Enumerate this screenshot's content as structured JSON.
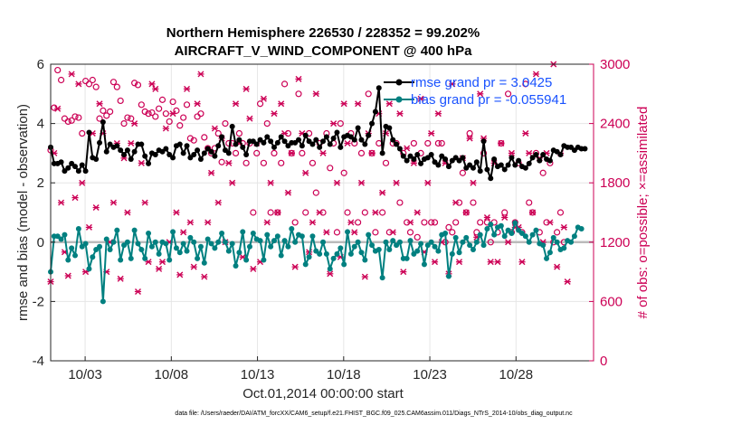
{
  "chart_data": {
    "type": "line",
    "title": "Northern Hemisphere 226530 / 228352 = 99.202%",
    "subtitle": "AIRCRAFT_V_WIND_COMPONENT @ 400 hPa",
    "xlabel": "Oct.01,2014 00:00:00 start",
    "ylabel": "rmse and bias (model - observation)",
    "y2label": "# of obs: o=possible; ×=assimilated",
    "footer": "data file: /Users/raeder/DAI/ATM_forcXX/CAM6_setup/f.e21.FHIST_BGC.f09_025.CAM6assim.011/Diags_NTrS_2014-10/obs_diag_output.nc",
    "xlim": [
      1,
      32.5
    ],
    "ylim": [
      -4,
      6
    ],
    "y2lim": [
      0,
      3000
    ],
    "x_ticks": [
      3,
      8,
      13,
      18,
      23,
      28
    ],
    "x_tick_labels": [
      "10/03",
      "10/08",
      "10/13",
      "10/18",
      "10/23",
      "10/28"
    ],
    "y_ticks": [
      -4,
      -2,
      0,
      2,
      4,
      6
    ],
    "y_tick_labels": [
      "-4",
      "-2",
      "0",
      "2",
      "4",
      "6"
    ],
    "y2_ticks": [
      0,
      600,
      1200,
      1800,
      2400,
      3000
    ],
    "y2_tick_labels": [
      "0",
      "600",
      "1200",
      "1800",
      "2400",
      "3000"
    ],
    "legend": [
      "rmse grand pr = 3.0425",
      "bias grand pr = -0.055941"
    ],
    "legend_position": "top-right",
    "colors": {
      "rmse": "#000000",
      "bias": "#008080",
      "obs": "#cc0055",
      "zero": "#bbbbbb",
      "legend_text": "#1a53ff"
    },
    "series": [
      {
        "name": "rmse",
        "values": [
          3.2,
          2.65,
          2.65,
          2.7,
          2.4,
          2.5,
          2.65,
          2.55,
          2.4,
          2.6,
          2.4,
          3.7,
          2.85,
          2.8,
          3.35,
          4.05,
          3.05,
          3.3,
          3.2,
          3.25,
          3.1,
          2.95,
          3.1,
          2.8,
          3.05,
          3.3,
          3.3,
          2.9,
          2.65,
          3.0,
          2.95,
          3.1,
          3.05,
          3.15,
          2.95,
          2.85,
          3.25,
          3.3,
          3.0,
          3.25,
          2.85,
          2.95,
          3.1,
          2.8,
          3.0,
          3.15,
          3.05,
          2.9,
          3.25,
          3.55,
          3.1,
          3.0,
          3.9,
          3.3,
          3.45,
          3.2,
          2.95,
          3.4,
          3.4,
          3.3,
          3.45,
          3.35,
          3.55,
          3.4,
          3.2,
          3.35,
          3.55,
          3.4,
          3.25,
          3.35,
          3.35,
          3.45,
          3.25,
          3.6,
          3.4,
          3.3,
          3.45,
          3.2,
          3.4,
          3.55,
          3.3,
          3.5,
          3.7,
          3.2,
          3.55,
          3.6,
          3.55,
          3.45,
          3.85,
          3.45,
          3.3,
          3.6,
          4.0,
          4.4,
          5.2,
          3.0,
          3.9,
          3.85,
          3.45,
          3.3,
          3.15,
          2.9,
          2.75,
          2.9,
          2.8,
          2.95,
          2.65,
          2.8,
          2.85,
          2.95,
          2.7,
          2.6,
          2.9,
          2.8,
          2.55,
          2.75,
          2.85,
          2.75,
          2.85,
          2.5,
          2.6,
          2.5,
          2.7,
          2.4,
          3.4,
          2.45,
          2.15,
          2.8,
          2.55,
          2.6,
          2.45,
          2.6,
          2.85,
          2.6,
          2.75,
          2.55,
          2.5,
          2.65,
          2.85,
          2.95,
          2.75,
          2.95,
          2.8,
          2.75,
          3.1,
          3.05,
          2.95,
          3.25,
          3.2,
          3.2,
          3.1,
          3.2,
          3.15,
          3.15
        ]
      },
      {
        "name": "bias",
        "values": [
          -1.0,
          0.2,
          0.2,
          0.1,
          0.25,
          -0.6,
          -0.2,
          -0.45,
          0.45,
          -0.15,
          -0.05,
          -0.9,
          -0.5,
          -0.25,
          -0.15,
          -2.0,
          0.1,
          -0.25,
          0.0,
          0.4,
          -0.6,
          -0.1,
          0.0,
          -0.55,
          0.4,
          -0.05,
          -0.25,
          -0.55,
          0.3,
          -0.15,
          0.0,
          -0.4,
          0.0,
          -0.05,
          -0.6,
          0.35,
          -0.2,
          -0.35,
          -0.05,
          -0.3,
          0.15,
          0.0,
          -0.55,
          -0.15,
          -0.7,
          0.1,
          -0.05,
          -0.2,
          0.0,
          0.3,
          0.0,
          -0.3,
          -0.05,
          -0.8,
          -0.35,
          0.35,
          -0.6,
          -0.15,
          0.3,
          0.1,
          0.05,
          -0.6,
          0.25,
          -0.15,
          0.05,
          0.2,
          -0.45,
          0.05,
          -0.15,
          0.45,
          0.0,
          0.25,
          0.2,
          -0.75,
          -0.5,
          0.2,
          -0.3,
          -0.4,
          0.0,
          -0.4,
          -0.9,
          -0.55,
          -0.4,
          -0.2,
          -0.75,
          0.35,
          -0.4,
          -0.15,
          0.0,
          -0.35,
          -0.6,
          0.25,
          -0.1,
          -0.3,
          -0.25,
          -1.2,
          0.0,
          -0.25,
          0.05,
          -0.1,
          0.0,
          -0.55,
          -0.55,
          0.05,
          -0.4,
          -0.3,
          -0.05,
          -0.75,
          -0.1,
          0.0,
          -0.15,
          -0.3,
          0.25,
          0.3,
          -1.15,
          -0.4,
          0.15,
          -0.35,
          0.0,
          0.15,
          -0.1,
          -0.25,
          0.0,
          0.25,
          -0.1,
          0.45,
          0.6,
          0.25,
          0.5,
          0.55,
          0.2,
          0.4,
          0.3,
          0.65,
          0.4,
          0.3,
          0.2,
          0.0,
          0.25,
          0.4,
          -0.05,
          -0.1,
          -0.55,
          -0.35,
          0.15,
          0.0,
          -0.25,
          -0.2,
          0.05,
          0.0,
          0.2,
          0.5,
          0.45
        ]
      },
      {
        "name": "obs_assimilated",
        "values": [
          800,
          2100,
          2550,
          1600,
          1100,
          860,
          2900,
          1650,
          2800,
          1800,
          900,
          1350,
          2300,
          1550,
          2600,
          2300,
          900,
          1200,
          1600,
          2200,
          830,
          2050,
          1500,
          2200,
          2400,
          700,
          2000,
          1600,
          1000,
          2800,
          2750,
          930,
          1000,
          2350,
          1200,
          2500,
          1500,
          870,
          1300,
          2750,
          1400,
          950,
          2600,
          2900,
          850,
          1400,
          1900,
          2350,
          1600,
          2250,
          1200,
          2000,
          1800,
          2600,
          2200,
          1050,
          2750,
          2450,
          930,
          2200,
          1000,
          2650,
          1400,
          1800,
          2500,
          1500,
          2600,
          2300,
          1700,
          2100,
          950,
          2850,
          2300,
          1900,
          1100,
          1400,
          2700,
          1500,
          2100,
          1300,
          880,
          2400,
          1800,
          1050,
          2600,
          2200,
          1400,
          1300,
          2600,
          1800,
          850,
          2300,
          2100,
          1500,
          2500,
          1700,
          2300,
          2600,
          1300,
          1800,
          2500,
          900,
          2150,
          1400,
          2000,
          1500,
          2650,
          1100,
          1800,
          2300,
          1000,
          2500,
          1200,
          2000,
          880,
          2800,
          1600,
          1000,
          2050,
          1500,
          2250,
          1800,
          1250,
          2700,
          2250,
          1450,
          1000,
          2000,
          1000,
          2200,
          1450,
          1200,
          2100,
          1350,
          1350,
          1000,
          2300,
          2100,
          1500,
          2900,
          2050,
          1200,
          2100,
          1400,
          3000,
          950,
          2100,
          1350,
          800
        ]
      },
      {
        "name": "obs_possible",
        "values": [
          2130,
          2560,
          2940,
          2840,
          2450,
          2420,
          2430,
          2470,
          2460,
          2300,
          2830,
          2800,
          2840,
          2770,
          2450,
          2530,
          2480,
          2520,
          2820,
          2770,
          2630,
          2400,
          2460,
          2450,
          2810,
          2790,
          2590,
          2520,
          2500,
          2510,
          2470,
          2550,
          2640,
          2500,
          2420,
          2620,
          2530,
          2380,
          2460,
          2590,
          2250,
          2230,
          2470,
          2500,
          2260,
          2150,
          2100,
          2150,
          2300,
          2010,
          2400,
          2200,
          2200,
          2100,
          2300,
          2200,
          2000,
          2200,
          1500,
          2100,
          2600,
          2000,
          2400,
          1500,
          2100,
          1500,
          2000,
          2800,
          2300,
          2100,
          1400,
          2700,
          2100,
          1500,
          2300,
          2000,
          1700,
          2200,
          1500,
          2300,
          1950,
          2200,
          1300,
          2400,
          1900,
          1500,
          2300,
          2200,
          1400,
          2100,
          1500,
          2700,
          2100,
          1300,
          2200,
          1500,
          2000,
          1300,
          2200,
          2200,
          1600,
          2100,
          1400,
          1300,
          2200,
          1250,
          2100,
          1400,
          2200,
          1400,
          1400,
          2200,
          2200,
          1200,
          1350,
          1300,
          1400,
          1600,
          1900,
          1500,
          2300,
          1600,
          1300,
          1400,
          2100,
          1400,
          1200,
          1400,
          1300,
          2200,
          1500,
          2700,
          1300,
          1400,
          2000,
          1300,
          2800,
          1600,
          1500,
          2100,
          1300,
          1900,
          1400,
          2000,
          1200,
          1300,
          1500,
          1200
        ]
      }
    ]
  }
}
